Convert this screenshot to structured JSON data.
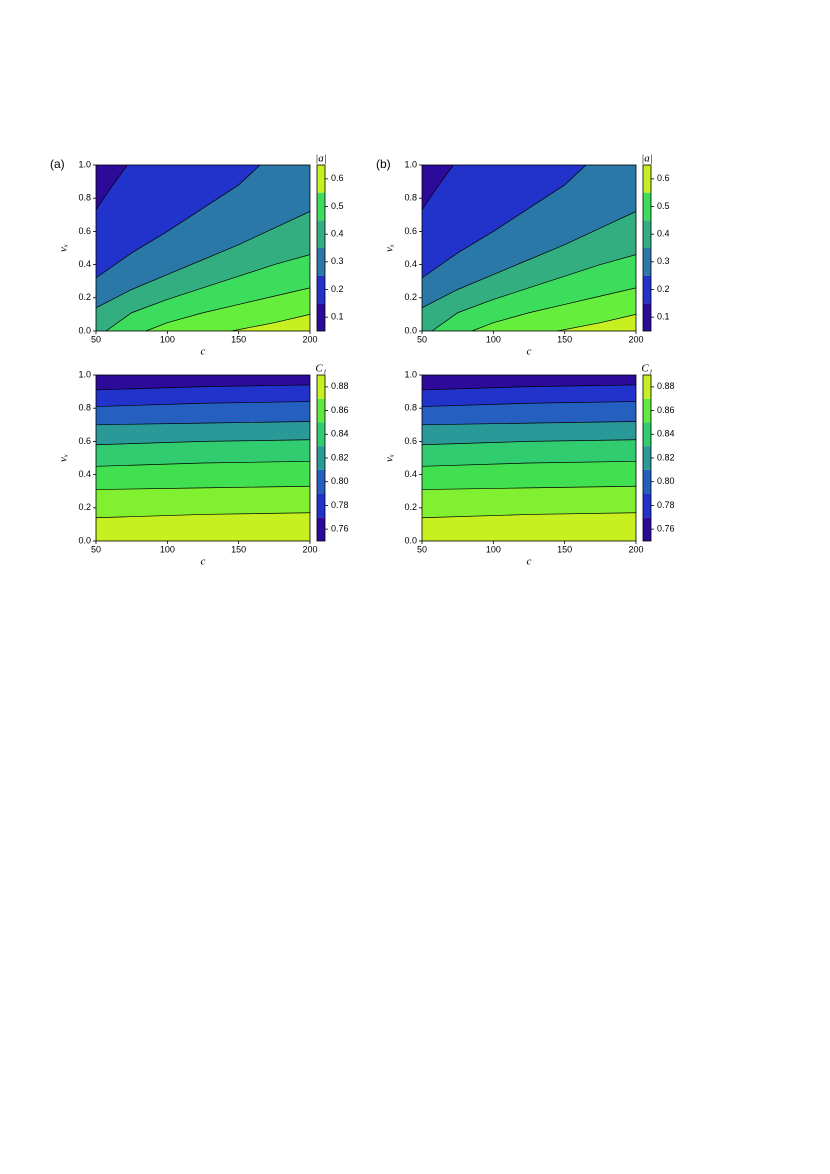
{
  "chart_data": [
    {
      "type": "contour",
      "panel_label": "(a)",
      "xlabel": "c",
      "ylabel": "vₓ",
      "xlim": [
        50,
        200
      ],
      "xticks": [
        50,
        100,
        150,
        200
      ],
      "ylim": [
        0,
        1
      ],
      "yticks": [
        {
          "value": 0,
          "label": "0.0"
        },
        0.2,
        0.4,
        0.6,
        0.8,
        {
          "value": 1,
          "label": "1.0"
        }
      ],
      "colors": [
        "#2c0b9a",
        "#2233cc",
        "#2a78a8",
        "#33ae80",
        "#3cdc5c",
        "#66ee3c",
        "#c8f020"
      ],
      "lines": [
        {
          "x": [
            50,
            61,
            72
          ],
          "y": [
            0.73,
            0.87,
            1
          ]
        },
        {
          "x": [
            50,
            75,
            100,
            125,
            150,
            165
          ],
          "y": [
            0.32,
            0.47,
            0.6,
            0.74,
            0.88,
            1
          ]
        },
        {
          "x": [
            50,
            75,
            100,
            125,
            150,
            175,
            200
          ],
          "y": [
            0.14,
            0.25,
            0.34,
            0.43,
            0.52,
            0.62,
            0.72
          ]
        },
        {
          "x": [
            57,
            75,
            100,
            125,
            150,
            175,
            200
          ],
          "y": [
            0,
            0.11,
            0.19,
            0.26,
            0.33,
            0.4,
            0.46
          ]
        },
        {
          "x": [
            85,
            100,
            125,
            150,
            175,
            200
          ],
          "y": [
            0,
            0.05,
            0.11,
            0.16,
            0.21,
            0.26
          ]
        },
        {
          "x": [
            145,
            175,
            200
          ],
          "y": [
            0,
            0.05,
            0.1
          ]
        }
      ],
      "colorbar": {
        "label": "|a|",
        "lim": [
          0.05,
          0.65
        ],
        "ticks": [
          0.1,
          0.2,
          0.3,
          0.4,
          0.5,
          0.6
        ],
        "levels": [
          0.05,
          0.15,
          0.25,
          0.35,
          0.45,
          0.55,
          0.65
        ],
        "colors": [
          "#2c0b9a",
          "#2233cc",
          "#2a78a8",
          "#33ae80",
          "#3cdc5c",
          "#c8f020"
        ]
      }
    },
    {
      "type": "contour",
      "panel_label": "(b)",
      "xlabel": "c",
      "ylabel": "vₓ",
      "xlim": [
        50,
        200
      ],
      "xticks": [
        50,
        100,
        150,
        200
      ],
      "ylim": [
        0,
        1
      ],
      "yticks": [
        {
          "value": 0,
          "label": "0.0"
        },
        0.2,
        0.4,
        0.6,
        0.8,
        {
          "value": 1,
          "label": "1.0"
        }
      ],
      "colors": [
        "#2c0b9a",
        "#2233cc",
        "#2a78a8",
        "#33ae80",
        "#3cdc5c",
        "#66ee3c",
        "#c8f020"
      ],
      "lines": [
        {
          "x": [
            50,
            61,
            72
          ],
          "y": [
            0.73,
            0.87,
            1
          ]
        },
        {
          "x": [
            50,
            75,
            100,
            125,
            150,
            165
          ],
          "y": [
            0.32,
            0.47,
            0.6,
            0.74,
            0.88,
            1
          ]
        },
        {
          "x": [
            50,
            75,
            100,
            125,
            150,
            175,
            200
          ],
          "y": [
            0.14,
            0.25,
            0.34,
            0.43,
            0.52,
            0.62,
            0.72
          ]
        },
        {
          "x": [
            57,
            75,
            100,
            125,
            150,
            175,
            200
          ],
          "y": [
            0,
            0.11,
            0.19,
            0.26,
            0.33,
            0.4,
            0.46
          ]
        },
        {
          "x": [
            85,
            100,
            125,
            150,
            175,
            200
          ],
          "y": [
            0,
            0.05,
            0.11,
            0.16,
            0.21,
            0.26
          ]
        },
        {
          "x": [
            145,
            175,
            200
          ],
          "y": [
            0,
            0.05,
            0.1
          ]
        }
      ],
      "colorbar": {
        "label": "|a|",
        "lim": [
          0.05,
          0.65
        ],
        "ticks": [
          0.1,
          0.2,
          0.3,
          0.4,
          0.5,
          0.6
        ],
        "levels": [
          0.05,
          0.15,
          0.25,
          0.35,
          0.45,
          0.55,
          0.65
        ],
        "colors": [
          "#2c0b9a",
          "#2233cc",
          "#2a78a8",
          "#33ae80",
          "#3cdc5c",
          "#c8f020"
        ]
      }
    },
    {
      "type": "contour",
      "xlabel": "c",
      "ylabel": "vₓ",
      "xlim": [
        50,
        200
      ],
      "xticks": [
        50,
        100,
        150,
        200
      ],
      "ylim": [
        0,
        1
      ],
      "yticks": [
        {
          "value": 0,
          "label": "0.0"
        },
        0.2,
        0.4,
        0.6,
        0.8,
        {
          "value": 1,
          "label": "1.0"
        }
      ],
      "colors": [
        "#2c0b9a",
        "#2233cc",
        "#2560c0",
        "#2a9a98",
        "#32cc70",
        "#40e050",
        "#80f030",
        "#c8f020"
      ],
      "lines": [
        {
          "x": [
            50,
            125,
            200
          ],
          "y": [
            0.91,
            0.93,
            0.94
          ]
        },
        {
          "x": [
            50,
            125,
            200
          ],
          "y": [
            0.81,
            0.83,
            0.84
          ]
        },
        {
          "x": [
            50,
            125,
            200
          ],
          "y": [
            0.7,
            0.71,
            0.72
          ]
        },
        {
          "x": [
            50,
            125,
            200
          ],
          "y": [
            0.58,
            0.6,
            0.61
          ]
        },
        {
          "x": [
            50,
            125,
            200
          ],
          "y": [
            0.45,
            0.47,
            0.48
          ]
        },
        {
          "x": [
            50,
            125,
            200
          ],
          "y": [
            0.31,
            0.32,
            0.33
          ]
        },
        {
          "x": [
            50,
            125,
            200
          ],
          "y": [
            0.14,
            0.16,
            0.17
          ]
        }
      ],
      "colorbar": {
        "label": "C₁",
        "lim": [
          0.75,
          0.89
        ],
        "ticks": [
          0.76,
          0.78,
          {
            "value": 0.8,
            "label": "0.80"
          },
          0.82,
          0.84,
          0.86,
          0.88
        ],
        "levels": [
          0.75,
          0.77,
          0.79,
          0.81,
          0.83,
          0.85,
          0.87,
          0.89
        ],
        "colors": [
          "#2c0b9a",
          "#2233cc",
          "#2560c0",
          "#2a9a98",
          "#32cc70",
          "#60ea40",
          "#c8f020"
        ]
      }
    },
    {
      "type": "contour",
      "xlabel": "c",
      "ylabel": "vₓ",
      "xlim": [
        50,
        200
      ],
      "xticks": [
        50,
        100,
        150,
        200
      ],
      "ylim": [
        0,
        1
      ],
      "yticks": [
        {
          "value": 0,
          "label": "0.0"
        },
        0.2,
        0.4,
        0.6,
        0.8,
        {
          "value": 1,
          "label": "1.0"
        }
      ],
      "colors": [
        "#2c0b9a",
        "#2233cc",
        "#2560c0",
        "#2a9a98",
        "#32cc70",
        "#40e050",
        "#80f030",
        "#c8f020"
      ],
      "lines": [
        {
          "x": [
            50,
            125,
            200
          ],
          "y": [
            0.91,
            0.93,
            0.94
          ]
        },
        {
          "x": [
            50,
            125,
            200
          ],
          "y": [
            0.81,
            0.83,
            0.84
          ]
        },
        {
          "x": [
            50,
            125,
            200
          ],
          "y": [
            0.7,
            0.71,
            0.72
          ]
        },
        {
          "x": [
            50,
            125,
            200
          ],
          "y": [
            0.58,
            0.6,
            0.61
          ]
        },
        {
          "x": [
            50,
            125,
            200
          ],
          "y": [
            0.45,
            0.47,
            0.48
          ]
        },
        {
          "x": [
            50,
            125,
            200
          ],
          "y": [
            0.31,
            0.32,
            0.33
          ]
        },
        {
          "x": [
            50,
            125,
            200
          ],
          "y": [
            0.14,
            0.16,
            0.17
          ]
        }
      ],
      "colorbar": {
        "label": "C₁",
        "lim": [
          0.75,
          0.89
        ],
        "ticks": [
          0.76,
          0.78,
          {
            "value": 0.8,
            "label": "0.80"
          },
          0.82,
          0.84,
          0.86,
          0.88
        ],
        "levels": [
          0.75,
          0.77,
          0.79,
          0.81,
          0.83,
          0.85,
          0.87,
          0.89
        ],
        "colors": [
          "#2c0b9a",
          "#2233cc",
          "#2560c0",
          "#2a9a98",
          "#32cc70",
          "#60ea40",
          "#c8f020"
        ]
      }
    }
  ]
}
